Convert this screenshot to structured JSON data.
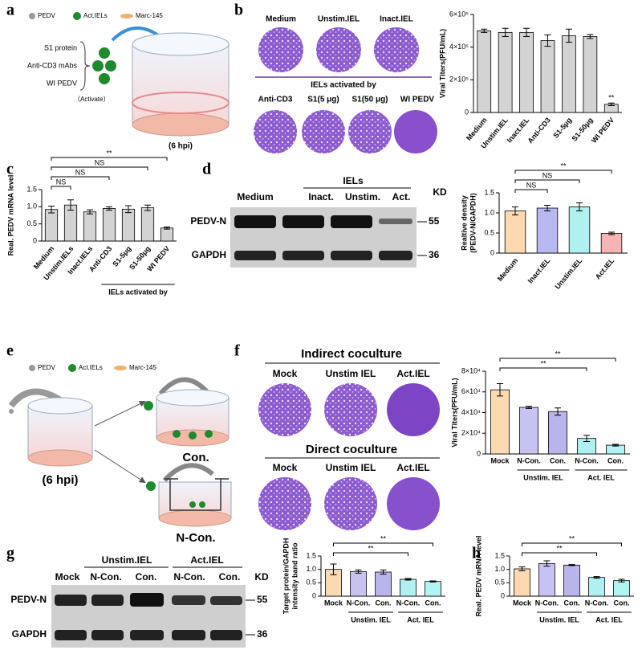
{
  "panel_labels": [
    "a",
    "b",
    "c",
    "d",
    "e",
    "f",
    "g",
    "h"
  ],
  "panel_a": {
    "legend": [
      "PEDV",
      "Act.IELs",
      "Marc-145"
    ],
    "activators": [
      "S1 protein",
      "Anti-CD3 mAbs",
      "WI PEDV"
    ],
    "activate": "（Activate）",
    "time": "(6 hpi)"
  },
  "panel_b": {
    "top_labels": [
      "Medium",
      "Unstim.IEL",
      "Inact.IEL"
    ],
    "group_label": "IELs activated by",
    "bottom_labels": [
      "Anti-CD3",
      "S1(5 μg)",
      "S1(50 μg)",
      "WI PEDV"
    ]
  },
  "panel_d_blot": {
    "group": "IELs",
    "lanes": [
      "Medium",
      "Inact.",
      "Unstim.",
      "Act."
    ],
    "kd": "KD",
    "rows": [
      {
        "name": "PEDV-N",
        "kd": "55"
      },
      {
        "name": "GAPDH",
        "kd": "36"
      }
    ]
  },
  "panel_e": {
    "legend": [
      "PEDV",
      "Act.IELs",
      "Marc-145"
    ],
    "time": "(6 hpi)",
    "outcomes": [
      "Con.",
      "N-Con."
    ]
  },
  "panel_f": {
    "rows": [
      {
        "title": "Indirect coculture",
        "labels": [
          "Mock",
          "Unstim IEL",
          "Act.IEL"
        ]
      },
      {
        "title": "Direct coculture",
        "labels": [
          "Mock",
          "Unstim IEL",
          "Act.IEL"
        ]
      }
    ]
  },
  "panel_g_blot": {
    "groups": [
      "Unstim.IEL",
      "Act.IEL"
    ],
    "lanes": [
      "Mock",
      "N-Con.",
      "Con.",
      "N-Con.",
      "Con."
    ],
    "kd": "KD",
    "rows": [
      {
        "name": "PEDV-N",
        "kd": "55"
      },
      {
        "name": "GAPDH",
        "kd": "36"
      }
    ]
  },
  "chart_data": [
    {
      "type": "bar",
      "y_label": "Viral Titers(PFU/mL)",
      "categories": [
        "Medium",
        "Unstim.IEL",
        "Inact.IEL",
        "Anti-CD3",
        "S1-5μg",
        "S1-50μg",
        "WI PEDV"
      ],
      "values": [
        500000,
        490000,
        490000,
        440000,
        470000,
        465000,
        50000
      ],
      "errors": [
        10000,
        25000,
        25000,
        35000,
        40000,
        12000,
        8000
      ],
      "color": "#d3d3d3",
      "ylim": [
        0,
        600000
      ],
      "yticks": [
        0,
        {
          "value": 200000,
          "label": "2×10⁵"
        },
        {
          "value": 400000,
          "label": "4×10⁵"
        },
        {
          "value": 600000,
          "label": "6×10⁵"
        }
      ],
      "bar_annotations": [
        {
          "index": 6,
          "label": "**"
        }
      ]
    },
    {
      "type": "bar",
      "y_label": "Real. PEDV mRNA level",
      "categories": [
        "Medium",
        "Unstim.IELs",
        "Inact.IELs",
        "Anti-CD3",
        "S1-5μg",
        "S1-50μg",
        "WI PEDV"
      ],
      "values": [
        0.92,
        1.05,
        0.85,
        0.95,
        0.93,
        0.97,
        0.38
      ],
      "errors": [
        0.1,
        0.15,
        0.06,
        0.05,
        0.1,
        0.08,
        0.03
      ],
      "color": "#d3d3d3",
      "ylim": [
        0,
        1.5
      ],
      "yticks": [
        0,
        0.5,
        {
          "value": 1,
          "label": "1.0"
        },
        1.5
      ],
      "comparisons": [
        {
          "pair": [
            0,
            1
          ],
          "label": "NS"
        },
        {
          "pair": [
            0,
            3
          ],
          "label": "NS"
        },
        {
          "pair": [
            0,
            5
          ],
          "label": "NS"
        },
        {
          "pair": [
            0,
            6
          ],
          "label": "**"
        }
      ],
      "groups": [
        {
          "label": "IELs activated by",
          "span": [
            3,
            6
          ]
        }
      ]
    },
    {
      "type": "bar",
      "y_label": [
        "Realtive density",
        "(PEDV-N/GAPDH)"
      ],
      "categories": [
        "Medium",
        "Inact.IEL",
        "Unstim.IEL",
        "Act.IEL"
      ],
      "values": [
        1.05,
        1.12,
        1.15,
        0.49
      ],
      "errors": [
        0.1,
        0.07,
        0.1,
        0.03
      ],
      "colors": [
        "#fcd9b0",
        "#b8b8f0",
        "#b0f0f0",
        "#f8b4b4"
      ],
      "ylim": [
        0,
        1.5
      ],
      "yticks": [
        0,
        0.5,
        {
          "value": 1,
          "label": "1.0"
        },
        1.5
      ],
      "comparisons": [
        {
          "pair": [
            0,
            1
          ],
          "label": "NS"
        },
        {
          "pair": [
            0,
            2
          ],
          "label": "NS"
        },
        {
          "pair": [
            0,
            3
          ],
          "label": "**"
        }
      ]
    },
    {
      "type": "bar",
      "y_label": "Viral Titers(PFU/mL)",
      "categories": [
        "Mock",
        "N-Con.",
        "Con.",
        "N-Con.",
        "Con."
      ],
      "values": [
        62000,
        45000,
        41000,
        15000,
        8500
      ],
      "errors": [
        6000,
        1000,
        3500,
        3000,
        800
      ],
      "colors": [
        "#fcd9b0",
        "#c6c2f2",
        "#b8b4ec",
        "#b0f0f0",
        "#b0f4f4"
      ],
      "ylim": [
        0,
        80000
      ],
      "yticks": [
        0,
        {
          "value": 20000,
          "label": "2×10⁴"
        },
        {
          "value": 40000,
          "label": "4×10⁴"
        },
        {
          "value": 60000,
          "label": "6×10⁴"
        },
        {
          "value": 80000,
          "label": "8×10⁴"
        }
      ],
      "comparisons": [
        {
          "pair": [
            0,
            3
          ],
          "label": "**"
        },
        {
          "pair": [
            0,
            4
          ],
          "label": "**"
        }
      ],
      "groups": [
        {
          "label": "Unstim. IEL",
          "span": [
            1,
            2
          ]
        },
        {
          "label": "Act. IEL",
          "span": [
            3,
            4
          ]
        }
      ]
    },
    {
      "type": "bar",
      "y_label": [
        "Target protein/GAPDH",
        "intensity band ratio"
      ],
      "categories": [
        "Mock",
        "N-Con.",
        "Con.",
        "N-Con.",
        "Con."
      ],
      "values": [
        1.0,
        0.92,
        0.9,
        0.63,
        0.55
      ],
      "errors": [
        0.2,
        0.06,
        0.08,
        0.03,
        0.02
      ],
      "colors": [
        "#fcd9b0",
        "#c6c2f2",
        "#b8b4ec",
        "#b0f0f0",
        "#b0f4f4"
      ],
      "ylim": [
        0,
        1.5
      ],
      "yticks": [
        0,
        0.5,
        {
          "value": 1,
          "label": "1.0"
        },
        1.5
      ],
      "comparisons": [
        {
          "pair": [
            0,
            3
          ],
          "label": "**"
        },
        {
          "pair": [
            0,
            4
          ],
          "label": "**"
        }
      ],
      "groups": [
        {
          "label": "Unstim. IEL",
          "span": [
            1,
            2
          ]
        },
        {
          "label": "Act. IEL",
          "span": [
            3,
            4
          ]
        }
      ]
    },
    {
      "type": "bar",
      "y_label": "Real. PEDV mRNA level",
      "categories": [
        "Mock",
        "N-Con.",
        "Con.",
        "N-Con.",
        "Con."
      ],
      "values": [
        1.02,
        1.22,
        1.16,
        0.7,
        0.58
      ],
      "errors": [
        0.07,
        0.1,
        0.02,
        0.03,
        0.05
      ],
      "colors": [
        "#fcd9b0",
        "#c6c2f2",
        "#b8b4ec",
        "#b0f0f0",
        "#b0f4f4"
      ],
      "ylim": [
        0,
        1.5
      ],
      "yticks": [
        0,
        0.5,
        {
          "value": 1,
          "label": "1.0"
        },
        1.5
      ],
      "comparisons": [
        {
          "pair": [
            0,
            3
          ],
          "label": "**"
        },
        {
          "pair": [
            0,
            4
          ],
          "label": "**"
        }
      ],
      "groups": [
        {
          "label": "Unstim. IEL",
          "span": [
            1,
            2
          ]
        },
        {
          "label": "Act. IEL",
          "span": [
            3,
            4
          ]
        }
      ]
    }
  ]
}
